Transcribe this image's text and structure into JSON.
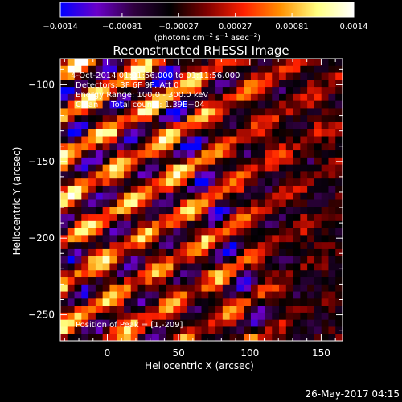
{
  "chart_data": {
    "type": "heatmap",
    "title": "Reconstructed RHESSI Image",
    "xlabel": "Heliocentric X (arcsec)",
    "ylabel": "Heliocentric Y (arcsec)",
    "xlim": [
      -33,
      165
    ],
    "ylim": [
      -267,
      -83
    ],
    "xticks": [
      0,
      50,
      100,
      150
    ],
    "yticks": [
      -250,
      -200,
      -150,
      -100
    ],
    "tick_labels_x": [
      "0",
      "50",
      "100",
      "150"
    ],
    "tick_labels_y": [
      "−250",
      "−200",
      "−150",
      "−100"
    ],
    "colorbar": {
      "range": [
        -0.0014,
        0.0014
      ],
      "ticks": [
        -0.0014,
        -0.00081,
        -0.00027,
        0.00027,
        0.00081,
        0.0014
      ],
      "tick_labels": [
        "−0.0014",
        "−0.00081",
        "−0.00027",
        "0.00027",
        "0.00081",
        "0.0014"
      ],
      "units_main": "(photons cm",
      "units_exp1": "−2",
      "units_mid": " s",
      "units_exp2": "−1",
      "units_tail": " asec",
      "units_exp3": "−2",
      "units_close": ")",
      "colormap": [
        "#0000ff",
        "#6a00c8",
        "#300040",
        "#000000",
        "#800000",
        "#ff2000",
        "#ff9000",
        "#ffff80",
        "#ffffff"
      ]
    },
    "annotations": [
      "4-Oct-2014 01:01:56.000 to 01:11:56.000",
      "Detectors: 3F 6F 9F, Att 0",
      "Energy Range: 100.0 - 300.0 keV",
      "Clean     Total counts: 1.39E+04"
    ],
    "peak_label": "Position of Peak = [1,-209]",
    "peak": [
      1,
      -209
    ]
  },
  "footer_timestamp": "26-May-2017 04:15"
}
